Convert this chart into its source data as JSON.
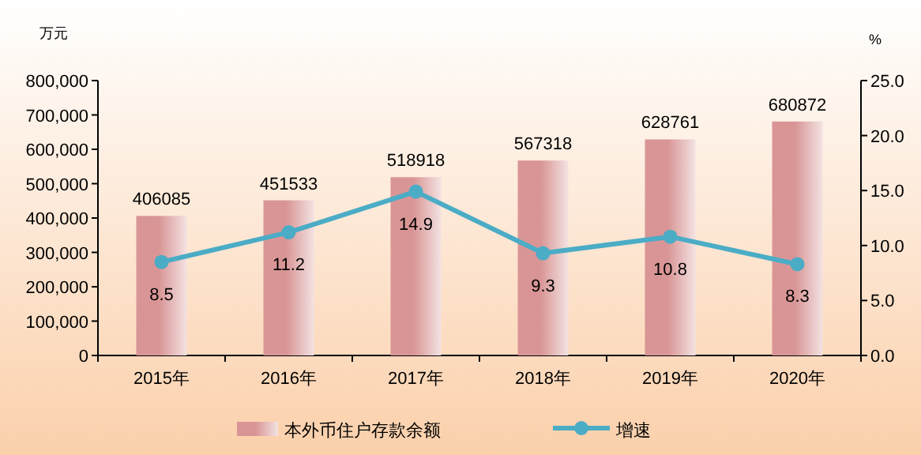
{
  "chart_data": {
    "type": "bar",
    "ylabel": "万元",
    "y2label": "%",
    "categories": [
      "2015年",
      "2016年",
      "2017年",
      "2018年",
      "2019年",
      "2020年"
    ],
    "series": [
      {
        "name": "本外币住户存款余额",
        "color": "#d99595",
        "values": [
          406085,
          451533,
          518918,
          567318,
          628761,
          680872
        ]
      },
      {
        "name": "增速",
        "type": "line",
        "axis": "y2",
        "color": "#4bacc6",
        "values": [
          8.5,
          11.2,
          14.9,
          9.3,
          10.8,
          8.3
        ]
      }
    ],
    "ylim": [
      0,
      800000
    ],
    "yticks": [
      {
        "value": 0,
        "label": "0"
      },
      {
        "value": 100000,
        "label": "100,000"
      },
      {
        "value": 200000,
        "label": "200,000"
      },
      {
        "value": 300000,
        "label": "300,000"
      },
      {
        "value": 400000,
        "label": "400,000"
      },
      {
        "value": 500000,
        "label": "500,000"
      },
      {
        "value": 600000,
        "label": "600,000"
      },
      {
        "value": 700000,
        "label": "700,000"
      },
      {
        "value": 800000,
        "label": "800,000"
      }
    ],
    "y2lim": [
      0,
      25
    ],
    "y2ticks": [
      {
        "value": 0,
        "label": "0.0"
      },
      {
        "value": 5,
        "label": "5.0"
      },
      {
        "value": 10,
        "label": "10.0"
      },
      {
        "value": 15,
        "label": "15.0"
      },
      {
        "value": 20,
        "label": "20.0"
      },
      {
        "value": 25,
        "label": "25.0"
      }
    ],
    "data_labels": true,
    "marker": "circle",
    "legend": "bottom",
    "grid": false
  }
}
